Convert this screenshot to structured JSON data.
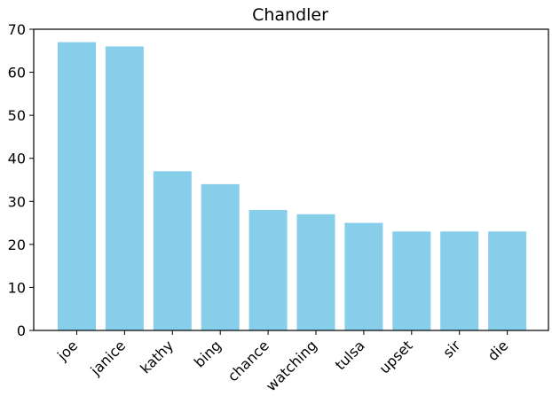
{
  "chart_data": {
    "type": "bar",
    "title": "Chandler",
    "xlabel": "",
    "ylabel": "",
    "categories": [
      "joe",
      "janice",
      "kathy",
      "bing",
      "chance",
      "watching",
      "tulsa",
      "upset",
      "sir",
      "die"
    ],
    "values": [
      67,
      66,
      37,
      34,
      28,
      27,
      25,
      23,
      23,
      23
    ],
    "ylim": [
      0,
      70
    ],
    "yticks": [
      0,
      10,
      20,
      30,
      40,
      50,
      60,
      70
    ],
    "grid": false,
    "bar_color": "#87ceeb"
  }
}
